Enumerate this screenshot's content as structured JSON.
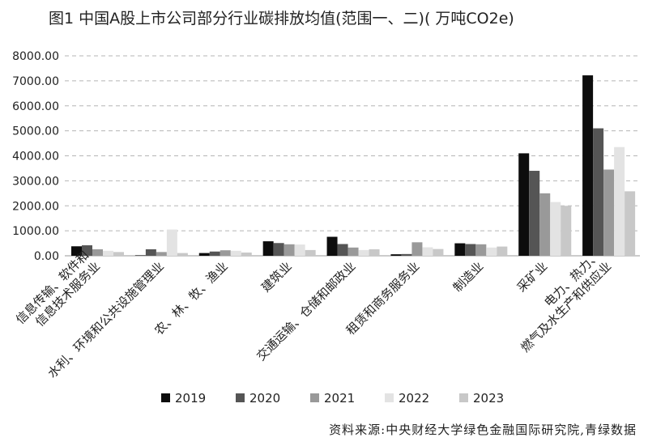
{
  "chart_data": {
    "type": "bar",
    "title": "图1 中国A股上市公司部分行业碳排放均值(范围一、二)( 万吨CO2e)",
    "ylim": [
      0,
      8000
    ],
    "yticks": [
      "0.00",
      "1000.00",
      "2000.00",
      "3000.00",
      "4000.00",
      "5000.00",
      "6000.00",
      "7000.00",
      "8000.00"
    ],
    "grid": true,
    "legend_position": "bottom",
    "categories": [
      [
        "信息传输、软件和",
        "信息技术服务业"
      ],
      [
        "水利、环境和公共设施管理业"
      ],
      [
        "农、林、牧、渔业"
      ],
      [
        "建筑业"
      ],
      [
        "交通运输、仓储和邮政业"
      ],
      [
        "租赁和商务服务业"
      ],
      [
        "制造业"
      ],
      [
        "采矿业"
      ],
      [
        "电力、热力、",
        "燃气及水生产和供应业"
      ]
    ],
    "series": [
      {
        "name": "2019",
        "color": "#0d0d0d",
        "values": [
          380,
          20,
          110,
          580,
          760,
          60,
          500,
          4100,
          7220
        ]
      },
      {
        "name": "2020",
        "color": "#555555",
        "values": [
          420,
          260,
          170,
          510,
          470,
          70,
          470,
          3400,
          5100
        ]
      },
      {
        "name": "2021",
        "color": "#999999",
        "values": [
          260,
          150,
          220,
          460,
          330,
          540,
          460,
          2500,
          3450
        ]
      },
      {
        "name": "2022",
        "color": "#e3e3e3",
        "values": [
          200,
          1050,
          200,
          450,
          230,
          340,
          330,
          2150,
          4350
        ]
      },
      {
        "name": "2023",
        "color": "#c8c8c8",
        "values": [
          150,
          110,
          130,
          230,
          260,
          270,
          370,
          2000,
          2580
        ]
      }
    ]
  },
  "source": "资料来源:中央财经大学绿色金融国际研究院,青绿数据"
}
